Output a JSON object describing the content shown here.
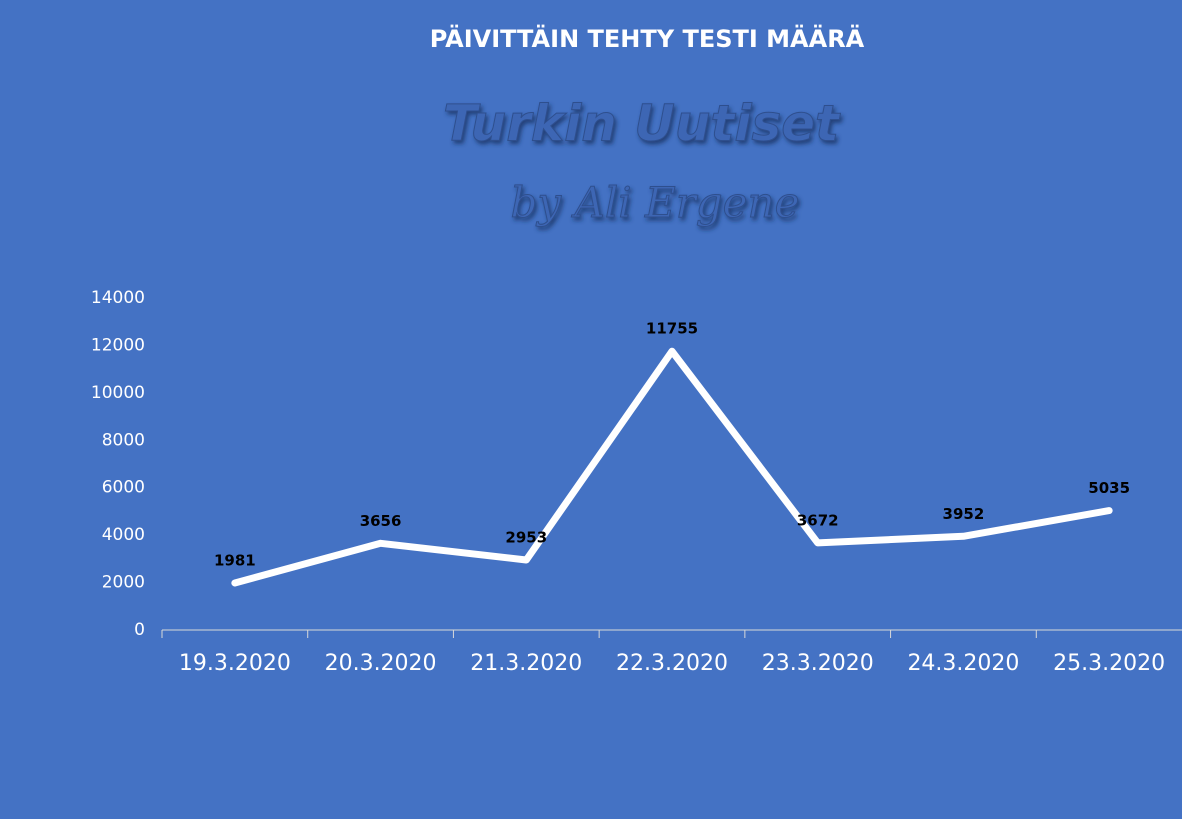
{
  "chart_data": {
    "type": "line",
    "title": "PÄIVITTÄIN TEHTY TESTI MÄÄRÄ",
    "watermark": [
      "Turkin Uutiset",
      "by Ali Ergene"
    ],
    "categories": [
      "19.3.2020",
      "20.3.2020",
      "21.3.2020",
      "22.3.2020",
      "23.3.2020",
      "24.3.2020",
      "25.3.2020"
    ],
    "values": [
      1981,
      3656,
      2953,
      11755,
      3672,
      3952,
      5035
    ],
    "color": "#ffffff",
    "ylim": [
      0,
      14000
    ],
    "yticks": [
      0,
      2000,
      4000,
      6000,
      8000,
      10000,
      12000,
      14000
    ],
    "grid": false,
    "data_labels": true
  }
}
